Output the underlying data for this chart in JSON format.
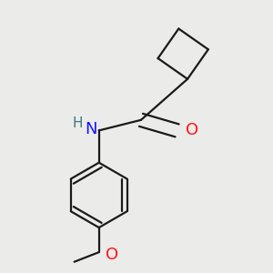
{
  "bg_color": "#ebebea",
  "bond_color": "#1a1a1a",
  "N_color": "#1414ff",
  "O_color": "#ff1414",
  "H_color": "#3a7a7a",
  "lw": 1.6,
  "dbo": 0.018,
  "figsize": [
    3.0,
    3.0
  ],
  "dpi": 100,
  "xlim": [
    0.05,
    0.95
  ],
  "ylim": [
    0.05,
    0.95
  ]
}
